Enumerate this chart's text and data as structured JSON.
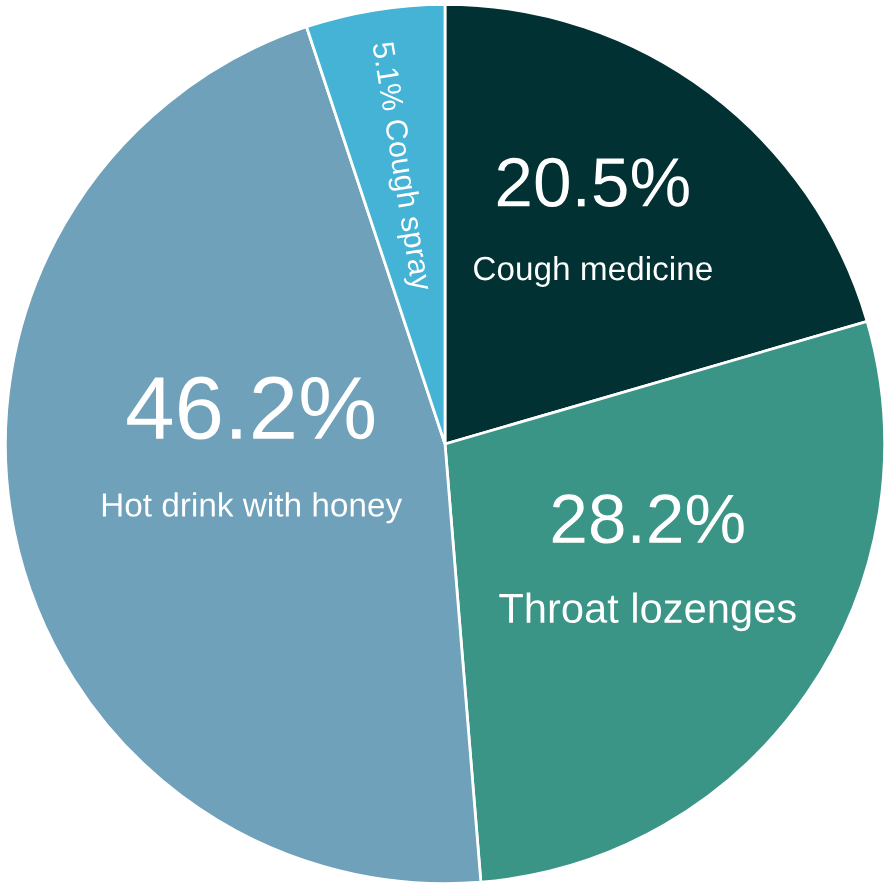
{
  "chart_data": {
    "type": "pie",
    "categories": [
      "Cough medicine",
      "Throat lozenges",
      "Hot drink with honey",
      "Cough spray"
    ],
    "values": [
      20.5,
      28.2,
      46.2,
      5.1
    ],
    "value_labels": [
      "20.5%",
      "28.2%",
      "46.2%",
      "5.1%"
    ],
    "colors": [
      "#013133",
      "#3a9586",
      "#6fa1bb",
      "#45b3d5"
    ],
    "legend": false
  }
}
